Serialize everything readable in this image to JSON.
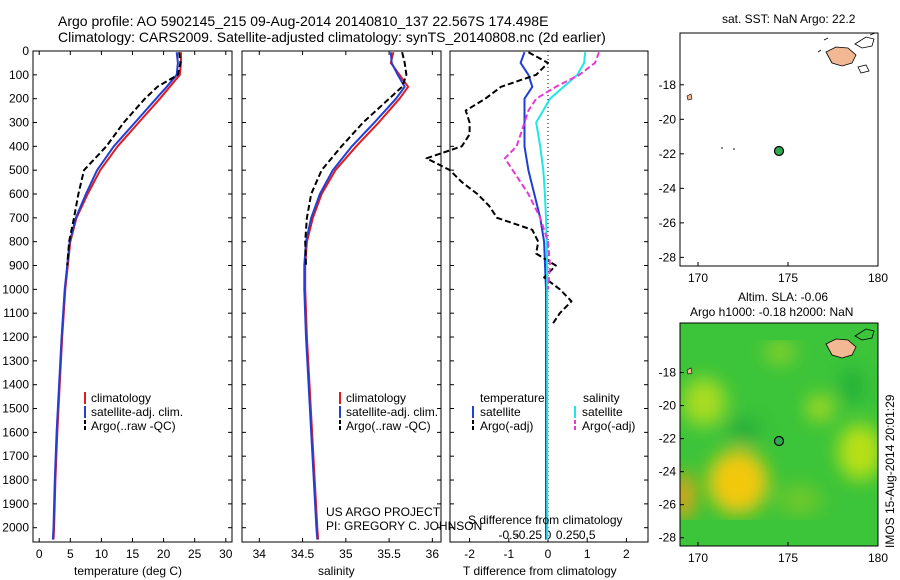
{
  "header": {
    "line1": "Argo profile: AO 5902145_215 09-Aug-2014 20140810_137 22.567S 174.498E",
    "line2": "Climatology: CARS2009. Satellite-adjusted climatology: synTS_20140808.nc (2d earlier)"
  },
  "footer": {
    "project": "US ARGO PROJECT",
    "pi": "PI: GREGORY C. JOHNSON",
    "stamp": "IMOS 15-Aug-2014 20:01:29"
  },
  "colors": {
    "climatology": "#e41a1c",
    "satellite": "#1f3fd6",
    "argo": "#000000",
    "sal_satellite": "#22e5e5",
    "sal_argo": "#e53ad5",
    "land": "#f2b894",
    "map_low": "#2fbf2f",
    "map_high": "#f2c810"
  },
  "chart_data": [
    {
      "type": "line",
      "name": "temperature",
      "xlabel": "temperature (deg C)",
      "xlim": [
        -1,
        31
      ],
      "ylim": [
        2060,
        0
      ],
      "xticks": [
        "0",
        "5",
        "10",
        "15",
        "20",
        "25",
        "30"
      ],
      "yticks": [
        "0",
        "100",
        "200",
        "300",
        "400",
        "500",
        "600",
        "700",
        "800",
        "900",
        "1000",
        "1100",
        "1200",
        "1300",
        "1400",
        "1500",
        "1600",
        "1700",
        "1800",
        "1900",
        "2000"
      ],
      "legend": [
        "climatology",
        "satellite-adj. clim.",
        "Argo(..raw -QC)"
      ],
      "series": [
        {
          "name": "climatology",
          "depth": [
            5,
            50,
            100,
            150,
            200,
            300,
            400,
            500,
            600,
            700,
            800,
            1000,
            1200,
            1400,
            1600,
            1800,
            2000,
            2050
          ],
          "values": [
            22.8,
            22.8,
            22.6,
            21.0,
            19.4,
            16.0,
            12.6,
            9.8,
            7.8,
            6.0,
            5.0,
            4.2,
            3.7,
            3.3,
            2.9,
            2.6,
            2.4,
            2.3
          ]
        },
        {
          "name": "satellite-adj. clim.",
          "depth": [
            5,
            50,
            100,
            150,
            200,
            300,
            400,
            500,
            600,
            700,
            800,
            1000,
            1200,
            1400,
            1600,
            1800,
            2000,
            2050
          ],
          "values": [
            22.1,
            22.3,
            22.1,
            20.5,
            18.8,
            15.4,
            12.0,
            9.3,
            7.5,
            5.9,
            4.9,
            4.1,
            3.6,
            3.2,
            2.8,
            2.5,
            2.3,
            2.2
          ]
        },
        {
          "name": "Argo(..raw -QC)",
          "depth": [
            5,
            50,
            100,
            150,
            200,
            300,
            400,
            500,
            600,
            700,
            800,
            900
          ],
          "values": [
            22.5,
            22.7,
            22.3,
            19.0,
            17.0,
            13.6,
            10.8,
            7.2,
            6.3,
            5.6,
            4.8,
            4.5
          ]
        }
      ]
    },
    {
      "type": "line",
      "name": "salinity",
      "xlabel": "salinity",
      "xlim": [
        33.8,
        36.1
      ],
      "ylim": [
        2060,
        0
      ],
      "xticks": [
        "34",
        "34.5",
        "35",
        "35.5",
        "36"
      ],
      "legend": [
        "climatology",
        "satellite-adj. clim.",
        "Argo(..raw -QC)"
      ],
      "series": [
        {
          "name": "climatology",
          "depth": [
            5,
            50,
            100,
            150,
            200,
            300,
            400,
            500,
            600,
            700,
            800,
            900,
            1000,
            1200,
            1400,
            1600,
            1800,
            2000,
            2050
          ],
          "values": [
            35.55,
            35.52,
            35.62,
            35.72,
            35.62,
            35.38,
            35.12,
            34.88,
            34.72,
            34.62,
            34.55,
            34.53,
            34.53,
            34.55,
            34.58,
            34.61,
            34.64,
            34.67,
            34.68
          ]
        },
        {
          "name": "satellite-adj. clim.",
          "depth": [
            5,
            50,
            100,
            150,
            200,
            300,
            400,
            500,
            600,
            700,
            800,
            900,
            1000,
            1200,
            1400,
            1600,
            1800,
            2000,
            2050
          ],
          "values": [
            35.52,
            35.53,
            35.6,
            35.68,
            35.58,
            35.33,
            35.07,
            34.85,
            34.7,
            34.6,
            34.54,
            34.52,
            34.52,
            34.54,
            34.57,
            34.6,
            34.63,
            34.66,
            34.67
          ]
        },
        {
          "name": "Argo(..raw -QC)",
          "depth": [
            5,
            50,
            100,
            150,
            200,
            300,
            400,
            500,
            600,
            700,
            800,
            900
          ],
          "values": [
            35.65,
            35.68,
            35.7,
            35.65,
            35.5,
            35.2,
            34.95,
            34.72,
            34.6,
            34.55,
            34.53,
            34.54
          ]
        }
      ]
    },
    {
      "type": "line",
      "name": "differences",
      "xlabel_top": "S difference from climatology",
      "xlabel": "T difference from climatology",
      "s_ticks": [
        "-0.5",
        "-0.25",
        "0",
        "0.25",
        "0.5"
      ],
      "t_ticks": [
        "-2",
        "-1",
        "0",
        "1",
        "2"
      ],
      "t_xlim": [
        -2.5,
        2.5
      ],
      "legend_temperature": [
        "satellite",
        "Argo(-adj)"
      ],
      "legend_salinity": [
        "satellite",
        "Argo(-adj)"
      ],
      "legend_headers": [
        "temperature",
        "salinity"
      ],
      "series": [
        {
          "name": "T satellite",
          "depth": [
            5,
            50,
            100,
            150,
            200,
            300,
            400,
            500,
            600,
            700,
            800,
            1000,
            1200,
            1400,
            1600,
            1800,
            2000,
            2050
          ],
          "values": [
            -0.6,
            -0.7,
            -0.5,
            -0.4,
            -0.6,
            -0.6,
            -0.6,
            -0.5,
            -0.35,
            -0.2,
            -0.1,
            -0.05,
            -0.05,
            -0.05,
            -0.05,
            -0.05,
            -0.05,
            -0.05
          ]
        },
        {
          "name": "T Argo(-adj)",
          "depth": [
            5,
            50,
            100,
            150,
            200,
            250,
            300,
            350,
            400,
            450,
            500,
            550,
            600,
            650,
            700,
            750,
            800,
            850,
            900,
            950,
            1000,
            1050,
            1100,
            1150
          ],
          "values": [
            -0.5,
            0,
            -0.3,
            -1.2,
            -1.6,
            -2.1,
            -2.0,
            -2.0,
            -2.2,
            -3.1,
            -2.5,
            -2.2,
            -1.8,
            -1.5,
            -1.3,
            -0.4,
            -0.25,
            -0.3,
            0.2,
            -0.1,
            0.3,
            0.6,
            0.3,
            0.1
          ]
        },
        {
          "name": "S satellite",
          "depth": [
            5,
            50,
            100,
            150,
            200,
            300,
            400,
            500,
            600,
            700,
            800,
            1000,
            1200,
            1400,
            1600,
            1800,
            2000,
            2050
          ],
          "values": [
            0.95,
            0.92,
            0.75,
            0.4,
            0.05,
            -0.3,
            -0.2,
            -0.12,
            -0.08,
            -0.05,
            -0.03,
            -0.02,
            -0.02,
            -0.02,
            -0.02,
            -0.02,
            -0.02,
            -0.02
          ]
        },
        {
          "name": "S Argo(-adj)",
          "depth": [
            5,
            50,
            100,
            150,
            200,
            250,
            300,
            350,
            400,
            450,
            500,
            550,
            600,
            700,
            800,
            900,
            1000
          ],
          "values": [
            1.3,
            1.2,
            0.8,
            0.2,
            -0.3,
            -0.5,
            -0.6,
            -0.7,
            -0.8,
            -1.1,
            -0.9,
            -0.7,
            -0.5,
            -0.2,
            0,
            0.05,
            0
          ]
        }
      ]
    },
    {
      "type": "scatter",
      "name": "sst-map",
      "title": "sat. SST: NaN Argo: 22.2",
      "xlim": [
        169,
        180
      ],
      "ylim": [
        -28.5,
        -15
      ],
      "xticks": [
        "170",
        "175",
        "180"
      ],
      "yticks": [
        "-18",
        "-20",
        "-22",
        "-24",
        "-26",
        "-28"
      ],
      "argo_position": {
        "lon": 174.5,
        "lat": -22.57
      }
    },
    {
      "type": "heatmap",
      "name": "sla-map",
      "title_line1": "Altim. SLA: -0.06",
      "title_line2": "Argo h1000: -0.18 h2000: NaN",
      "xlim": [
        169,
        180
      ],
      "ylim": [
        -28.5,
        -15
      ],
      "xticks": [
        "170",
        "175",
        "180"
      ],
      "yticks": [
        "-18",
        "-20",
        "-22",
        "-24",
        "-26",
        "-28"
      ],
      "argo_position": {
        "lon": 174.5,
        "lat": -22.57
      }
    }
  ]
}
